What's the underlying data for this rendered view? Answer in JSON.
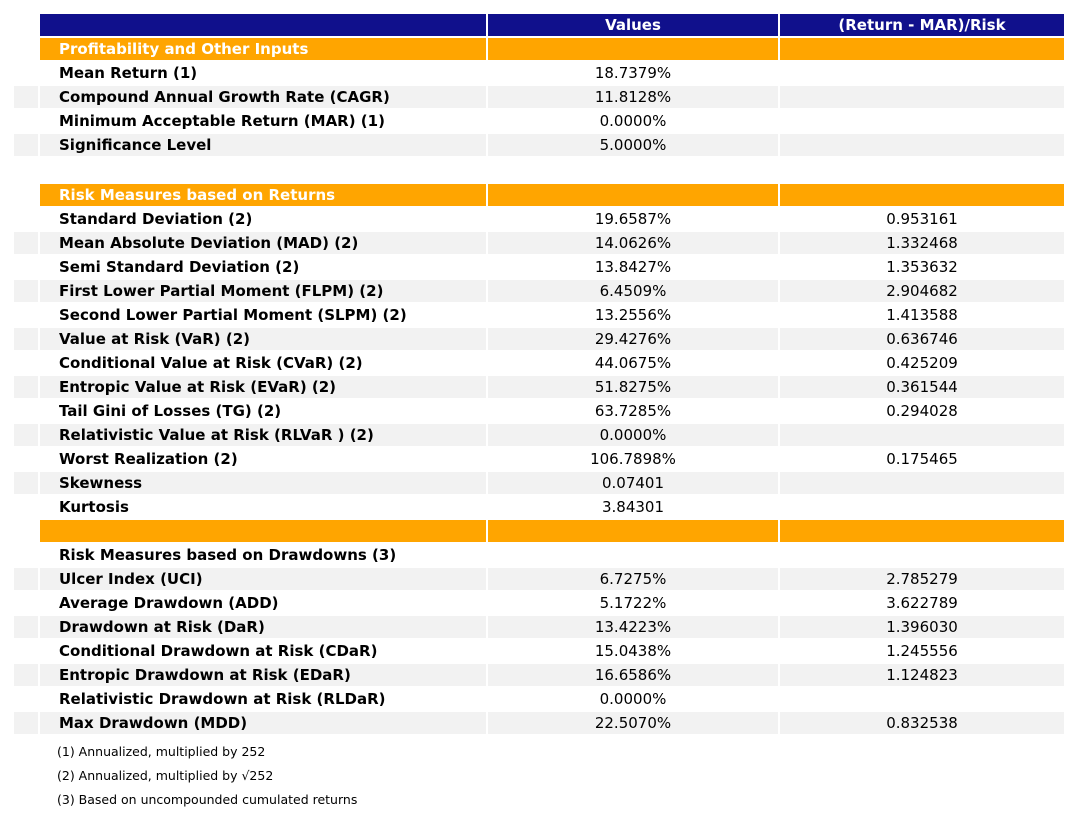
{
  "colors": {
    "header_bg": "#10108C",
    "section_bg": "#FFA500",
    "stripe_bg": "#F2F2F2",
    "header_text": "#FFFFFF",
    "body_text": "#000000",
    "page_bg": "#FFFFFF"
  },
  "report": {
    "columns": [
      "Values",
      "(Return - MAR)/Risk"
    ],
    "rows": [
      {
        "type": "section",
        "label": "Profitability and Other Inputs",
        "value": "",
        "ratio": ""
      },
      {
        "type": "data",
        "label": "Mean Return (1)",
        "value": "18.7379%",
        "ratio": ""
      },
      {
        "type": "data",
        "label": "Compound Annual Growth Rate (CAGR)",
        "value": "11.8128%",
        "ratio": ""
      },
      {
        "type": "data",
        "label": "Minimum Acceptable Return (MAR) (1)",
        "value": "0.0000%",
        "ratio": ""
      },
      {
        "type": "data",
        "label": "Significance Level",
        "value": "5.0000%",
        "ratio": ""
      },
      {
        "type": "spacer",
        "label": "",
        "value": "",
        "ratio": ""
      },
      {
        "type": "section",
        "label": "Risk Measures based on Returns",
        "value": "",
        "ratio": ""
      },
      {
        "type": "data",
        "label": "Standard Deviation (2)",
        "value": "19.6587%",
        "ratio": "0.953161"
      },
      {
        "type": "data",
        "label": "Mean Absolute Deviation (MAD) (2)",
        "value": "14.0626%",
        "ratio": "1.332468"
      },
      {
        "type": "data",
        "label": "Semi Standard Deviation (2)",
        "value": "13.8427%",
        "ratio": "1.353632"
      },
      {
        "type": "data",
        "label": "First Lower Partial Moment (FLPM) (2)",
        "value": "6.4509%",
        "ratio": "2.904682"
      },
      {
        "type": "data",
        "label": "Second Lower Partial Moment (SLPM) (2)",
        "value": "13.2556%",
        "ratio": "1.413588"
      },
      {
        "type": "data",
        "label": "Value at Risk (VaR) (2)",
        "value": "29.4276%",
        "ratio": "0.636746"
      },
      {
        "type": "data",
        "label": "Conditional Value at Risk (CVaR) (2)",
        "value": "44.0675%",
        "ratio": "0.425209"
      },
      {
        "type": "data",
        "label": "Entropic Value at Risk (EVaR) (2)",
        "value": "51.8275%",
        "ratio": "0.361544"
      },
      {
        "type": "data",
        "label": "Tail Gini of Losses (TG) (2)",
        "value": "63.7285%",
        "ratio": "0.294028"
      },
      {
        "type": "data",
        "label": "Relativistic Value at Risk (RLVaR ) (2)",
        "value": "0.0000%",
        "ratio": ""
      },
      {
        "type": "data",
        "label": "Worst Realization (2)",
        "value": "106.7898%",
        "ratio": "0.175465"
      },
      {
        "type": "data",
        "label": "Skewness",
        "value": "0.07401",
        "ratio": ""
      },
      {
        "type": "data",
        "label": "Kurtosis",
        "value": "3.84301",
        "ratio": ""
      },
      {
        "type": "section",
        "label": "",
        "value": "",
        "ratio": ""
      },
      {
        "type": "subheader",
        "label": "Risk Measures based on Drawdowns (3)",
        "value": "",
        "ratio": ""
      },
      {
        "type": "data",
        "label": "Ulcer Index (UCI)",
        "value": "6.7275%",
        "ratio": "2.785279"
      },
      {
        "type": "data",
        "label": "Average Drawdown (ADD)",
        "value": "5.1722%",
        "ratio": "3.622789"
      },
      {
        "type": "data",
        "label": "Drawdown at Risk (DaR)",
        "value": "13.4223%",
        "ratio": "1.396030"
      },
      {
        "type": "data",
        "label": "Conditional Drawdown at Risk (CDaR)",
        "value": "15.0438%",
        "ratio": "1.245556"
      },
      {
        "type": "data",
        "label": "Entropic Drawdown at Risk (EDaR)",
        "value": "16.6586%",
        "ratio": "1.124823"
      },
      {
        "type": "data",
        "label": "Relativistic Drawdown at Risk (RLDaR)",
        "value": "0.0000%",
        "ratio": ""
      },
      {
        "type": "data",
        "label": "Max Drawdown (MDD)",
        "value": "22.5070%",
        "ratio": "0.832538"
      }
    ]
  },
  "footnotes": [
    "(1) Annualized, multiplied by 252",
    "(2) Annualized, multiplied by √252",
    "(3) Based on uncompounded cumulated returns"
  ],
  "chart_data": {
    "type": "table",
    "title": "",
    "columns": [
      "",
      "Values",
      "(Return - MAR)/Risk"
    ],
    "sections": [
      {
        "name": "Profitability and Other Inputs",
        "rows": [
          [
            "Mean Return (1)",
            "18.7379%",
            ""
          ],
          [
            "Compound Annual Growth Rate (CAGR)",
            "11.8128%",
            ""
          ],
          [
            "Minimum Acceptable Return (MAR) (1)",
            "0.0000%",
            ""
          ],
          [
            "Significance Level",
            "5.0000%",
            ""
          ]
        ]
      },
      {
        "name": "Risk Measures based on Returns",
        "rows": [
          [
            "Standard Deviation (2)",
            "19.6587%",
            "0.953161"
          ],
          [
            "Mean Absolute Deviation (MAD) (2)",
            "14.0626%",
            "1.332468"
          ],
          [
            "Semi Standard Deviation (2)",
            "13.8427%",
            "1.353632"
          ],
          [
            "First Lower Partial Moment (FLPM) (2)",
            "6.4509%",
            "2.904682"
          ],
          [
            "Second Lower Partial Moment (SLPM) (2)",
            "13.2556%",
            "1.413588"
          ],
          [
            "Value at Risk (VaR) (2)",
            "29.4276%",
            "0.636746"
          ],
          [
            "Conditional Value at Risk (CVaR) (2)",
            "44.0675%",
            "0.425209"
          ],
          [
            "Entropic Value at Risk (EVaR) (2)",
            "51.8275%",
            "0.361544"
          ],
          [
            "Tail Gini of Losses (TG) (2)",
            "63.7285%",
            "0.294028"
          ],
          [
            "Relativistic Value at Risk (RLVaR ) (2)",
            "0.0000%",
            ""
          ],
          [
            "Worst Realization (2)",
            "106.7898%",
            "0.175465"
          ],
          [
            "Skewness",
            "0.07401",
            ""
          ],
          [
            "Kurtosis",
            "3.84301",
            ""
          ]
        ]
      },
      {
        "name": "Risk Measures based on Drawdowns (3)",
        "rows": [
          [
            "Ulcer Index (UCI)",
            "6.7275%",
            "2.785279"
          ],
          [
            "Average Drawdown (ADD)",
            "5.1722%",
            "3.622789"
          ],
          [
            "Drawdown at Risk (DaR)",
            "13.4223%",
            "1.396030"
          ],
          [
            "Conditional Drawdown at Risk (CDaR)",
            "15.0438%",
            "1.245556"
          ],
          [
            "Entropic Drawdown at Risk (EDaR)",
            "16.6586%",
            "1.124823"
          ],
          [
            "Relativistic Drawdown at Risk (RLDaR)",
            "0.0000%",
            ""
          ],
          [
            "Max Drawdown (MDD)",
            "22.5070%",
            "0.832538"
          ]
        ]
      }
    ],
    "footnotes": [
      "(1) Annualized, multiplied by 252",
      "(2) Annualized, multiplied by √252",
      "(3) Based on uncompounded cumulated returns"
    ]
  }
}
